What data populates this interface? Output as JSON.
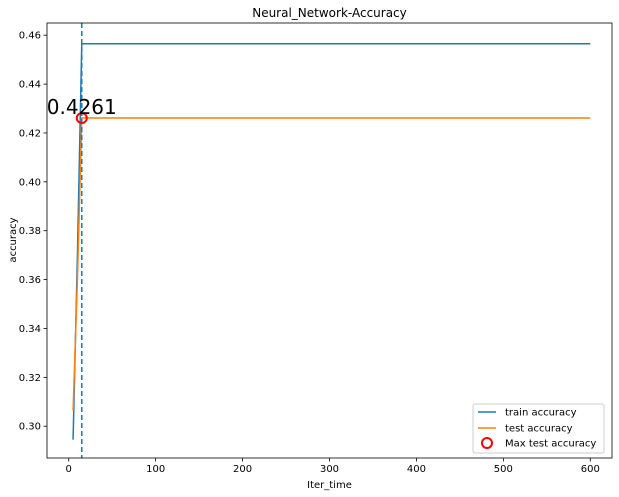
{
  "chart_data": {
    "type": "line",
    "title": "Neural_Network-Accuracy",
    "xlabel": "Iter_time",
    "ylabel": "accuracy",
    "xlim": [
      -25,
      625
    ],
    "ylim": [
      0.287,
      0.465
    ],
    "xticks": [
      0,
      100,
      200,
      300,
      400,
      500,
      600
    ],
    "xtick_labels": [
      "0",
      "100",
      "200",
      "300",
      "400",
      "500",
      "600"
    ],
    "yticks": [
      0.3,
      0.32,
      0.34,
      0.36,
      0.38,
      0.4,
      0.42,
      0.44,
      0.46
    ],
    "ytick_labels": [
      "0.30",
      "0.32",
      "0.34",
      "0.36",
      "0.38",
      "0.40",
      "0.42",
      "0.44",
      "0.46"
    ],
    "grid": false,
    "legend_position": "lower-right",
    "series": [
      {
        "name": "train accuracy",
        "color": "#1f77b4",
        "x": [
          5,
          10,
          15,
          600
        ],
        "y": [
          0.2945,
          0.37,
          0.4565,
          0.4565
        ]
      },
      {
        "name": "test accuracy",
        "color": "#ff7f0e",
        "x": [
          5,
          10,
          15,
          600
        ],
        "y": [
          0.3065,
          0.36,
          0.4261,
          0.4261
        ]
      }
    ],
    "max_marker": {
      "name": "Max test accuracy",
      "x": 15,
      "y": 0.4261,
      "label": "0.4261",
      "color": "#ff0000"
    },
    "vline": {
      "x": 15,
      "color": "#1f77b4",
      "style": "dashed"
    }
  }
}
